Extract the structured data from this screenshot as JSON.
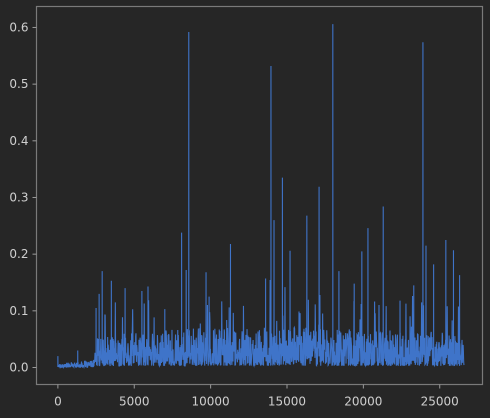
{
  "colors": {
    "background": "#262626",
    "axes": "#7a7a7a",
    "text": "#cfcfcf",
    "series": "#3f74c9"
  },
  "chart_data": {
    "type": "line",
    "title": "",
    "xlabel": "",
    "ylabel": "",
    "grid": false,
    "legend": "none",
    "xlim": [
      -1400,
      27800
    ],
    "ylim": [
      -0.03,
      0.637
    ],
    "x_ticks": [
      0,
      5000,
      10000,
      15000,
      20000,
      25000
    ],
    "x_tick_labels": [
      "0",
      "5000",
      "10000",
      "15000",
      "20000",
      "25000"
    ],
    "y_ticks": [
      0.0,
      0.1,
      0.2,
      0.3,
      0.4,
      0.5,
      0.6
    ],
    "y_tick_labels": [
      "0.0",
      "0.1",
      "0.2",
      "0.3",
      "0.4",
      "0.5",
      "0.6"
    ],
    "series": [
      {
        "name": "",
        "color": "#3f74c9",
        "x_start": 0,
        "x_end": 26600,
        "points_count": 26600,
        "baseline_profile": [
          {
            "x": 0,
            "y": 0.004
          },
          {
            "x": 2300,
            "y": 0.007
          },
          {
            "x": 2600,
            "y": 0.03
          },
          {
            "x": 5000,
            "y": 0.035
          },
          {
            "x": 10000,
            "y": 0.04
          },
          {
            "x": 15000,
            "y": 0.04
          },
          {
            "x": 20000,
            "y": 0.038
          },
          {
            "x": 25000,
            "y": 0.035
          },
          {
            "x": 26600,
            "y": 0.03
          }
        ],
        "peaks": [
          {
            "x": 0,
            "y": 0.02
          },
          {
            "x": 1300,
            "y": 0.03
          },
          {
            "x": 2500,
            "y": 0.105
          },
          {
            "x": 2700,
            "y": 0.13
          },
          {
            "x": 2900,
            "y": 0.17
          },
          {
            "x": 3500,
            "y": 0.153
          },
          {
            "x": 4400,
            "y": 0.14
          },
          {
            "x": 5500,
            "y": 0.135
          },
          {
            "x": 5900,
            "y": 0.143
          },
          {
            "x": 7000,
            "y": 0.103
          },
          {
            "x": 8100,
            "y": 0.238
          },
          {
            "x": 8400,
            "y": 0.172
          },
          {
            "x": 8570,
            "y": 0.592
          },
          {
            "x": 9700,
            "y": 0.168
          },
          {
            "x": 9900,
            "y": 0.125
          },
          {
            "x": 11300,
            "y": 0.218
          },
          {
            "x": 13600,
            "y": 0.157
          },
          {
            "x": 13950,
            "y": 0.532
          },
          {
            "x": 14150,
            "y": 0.26
          },
          {
            "x": 14700,
            "y": 0.335
          },
          {
            "x": 15200,
            "y": 0.206
          },
          {
            "x": 16300,
            "y": 0.268
          },
          {
            "x": 17100,
            "y": 0.319
          },
          {
            "x": 18000,
            "y": 0.606
          },
          {
            "x": 18400,
            "y": 0.17
          },
          {
            "x": 19400,
            "y": 0.148
          },
          {
            "x": 19900,
            "y": 0.205
          },
          {
            "x": 20300,
            "y": 0.246
          },
          {
            "x": 21300,
            "y": 0.284
          },
          {
            "x": 22400,
            "y": 0.118
          },
          {
            "x": 23300,
            "y": 0.145
          },
          {
            "x": 23900,
            "y": 0.574
          },
          {
            "x": 24100,
            "y": 0.215
          },
          {
            "x": 24600,
            "y": 0.182
          },
          {
            "x": 25400,
            "y": 0.225
          },
          {
            "x": 25900,
            "y": 0.207
          },
          {
            "x": 26300,
            "y": 0.163
          }
        ]
      }
    ]
  }
}
